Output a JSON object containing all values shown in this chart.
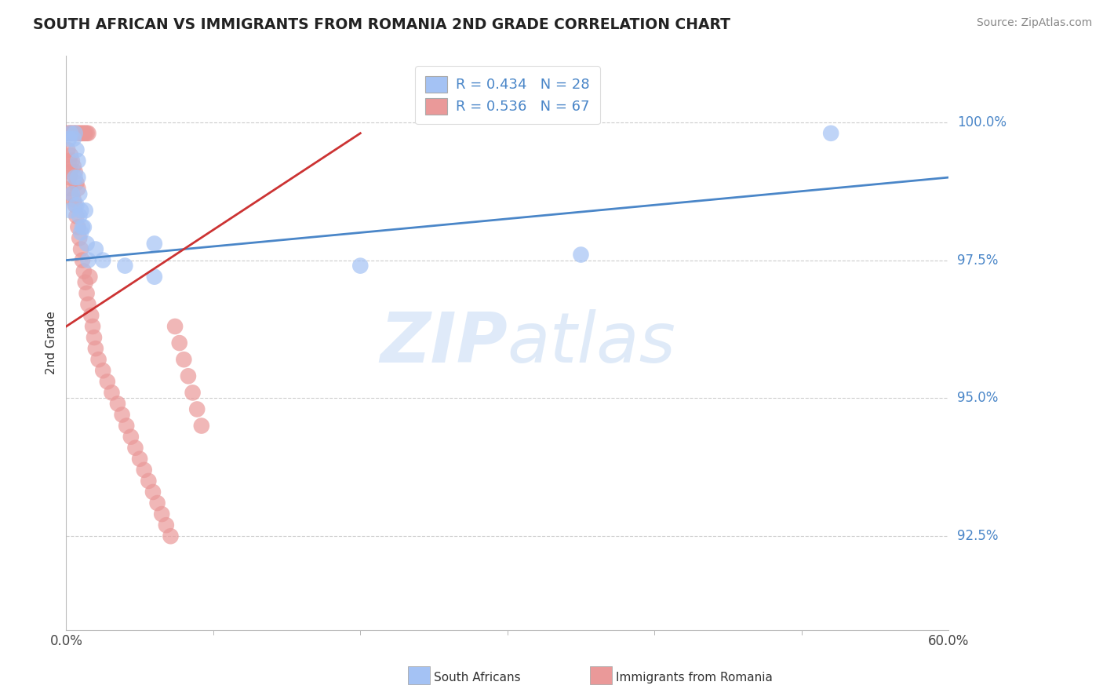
{
  "title": "SOUTH AFRICAN VS IMMIGRANTS FROM ROMANIA 2ND GRADE CORRELATION CHART",
  "source": "Source: ZipAtlas.com",
  "ylabel": "2nd Grade",
  "ytick_labels": [
    "92.5%",
    "95.0%",
    "97.5%",
    "100.0%"
  ],
  "ytick_values": [
    0.925,
    0.95,
    0.975,
    1.0
  ],
  "xlim": [
    0.0,
    0.6
  ],
  "ylim": [
    0.908,
    1.012
  ],
  "legend_r_blue": "R = 0.434",
  "legend_n_blue": "N = 28",
  "legend_r_pink": "R = 0.536",
  "legend_n_pink": "N = 67",
  "blue_color": "#a4c2f4",
  "pink_color": "#ea9999",
  "blue_line_color": "#4a86c8",
  "pink_line_color": "#cc3333",
  "watermark_text": "ZIPatlas",
  "sa_x": [
    0.002,
    0.003,
    0.005,
    0.006,
    0.007,
    0.008,
    0.008,
    0.009,
    0.01,
    0.011,
    0.012,
    0.013,
    0.014,
    0.015,
    0.02,
    0.025,
    0.04,
    0.06,
    0.52,
    0.003,
    0.004,
    0.006,
    0.007,
    0.009,
    0.01,
    0.06,
    0.2,
    0.35
  ],
  "sa_y": [
    0.997,
    0.998,
    0.997,
    0.998,
    0.995,
    0.993,
    0.99,
    0.987,
    0.984,
    0.981,
    0.981,
    0.984,
    0.978,
    0.975,
    0.977,
    0.975,
    0.974,
    0.978,
    0.998,
    0.984,
    0.987,
    0.99,
    0.985,
    0.983,
    0.98,
    0.972,
    0.974,
    0.976
  ],
  "ro_x": [
    0.001,
    0.001,
    0.002,
    0.002,
    0.002,
    0.003,
    0.003,
    0.003,
    0.003,
    0.004,
    0.004,
    0.004,
    0.005,
    0.005,
    0.005,
    0.006,
    0.006,
    0.006,
    0.007,
    0.007,
    0.007,
    0.008,
    0.008,
    0.008,
    0.009,
    0.009,
    0.01,
    0.01,
    0.011,
    0.011,
    0.012,
    0.012,
    0.013,
    0.013,
    0.014,
    0.014,
    0.015,
    0.015,
    0.016,
    0.017,
    0.018,
    0.019,
    0.02,
    0.022,
    0.025,
    0.028,
    0.031,
    0.035,
    0.038,
    0.041,
    0.044,
    0.047,
    0.05,
    0.053,
    0.056,
    0.059,
    0.062,
    0.065,
    0.068,
    0.071,
    0.074,
    0.077,
    0.08,
    0.083,
    0.086,
    0.089,
    0.092
  ],
  "ro_y": [
    0.998,
    0.995,
    0.998,
    0.993,
    0.99,
    0.998,
    0.994,
    0.991,
    0.988,
    0.998,
    0.993,
    0.987,
    0.998,
    0.992,
    0.986,
    0.998,
    0.991,
    0.985,
    0.998,
    0.989,
    0.983,
    0.998,
    0.988,
    0.981,
    0.998,
    0.979,
    0.998,
    0.977,
    0.998,
    0.975,
    0.998,
    0.973,
    0.998,
    0.971,
    0.998,
    0.969,
    0.998,
    0.967,
    0.972,
    0.965,
    0.963,
    0.961,
    0.959,
    0.957,
    0.955,
    0.953,
    0.951,
    0.949,
    0.947,
    0.945,
    0.943,
    0.941,
    0.939,
    0.937,
    0.935,
    0.933,
    0.931,
    0.929,
    0.927,
    0.925,
    0.963,
    0.96,
    0.957,
    0.954,
    0.951,
    0.948,
    0.945
  ]
}
